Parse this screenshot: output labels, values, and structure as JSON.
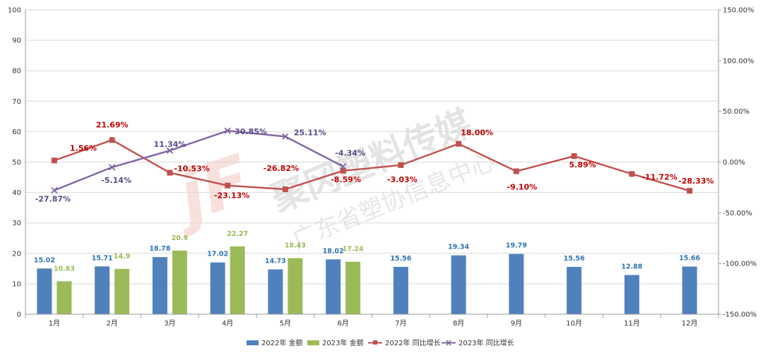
{
  "colors": {
    "bar2022": "#4f81bd",
    "bar2023": "#9bbb59",
    "line2022": "#c0504d",
    "line2023": "#8064a2",
    "label2022": "#2e74b5",
    "label2023": "#9bbb59",
    "pct2022": "#c00000",
    "pct2023": "#5b4a8a",
    "grid": "#d9d9d9"
  },
  "watermark": {
    "line1": "聚冈塑料传媒",
    "line2": "广东省塑协信息中心",
    "logo": "jF"
  },
  "chart_data": {
    "type": "bar",
    "categories": [
      "1月",
      "2月",
      "3月",
      "4月",
      "5月",
      "6月",
      "7月",
      "8月",
      "9月",
      "10月",
      "11月",
      "12月"
    ],
    "series": [
      {
        "name": "2022年 金额",
        "kind": "bar",
        "axis": "left",
        "values": [
          15.02,
          15.71,
          18.78,
          17.02,
          14.73,
          18.02,
          15.56,
          19.34,
          19.79,
          15.56,
          12.88,
          15.66
        ],
        "labels": [
          "15.02",
          "15.71",
          "18.78",
          "17.02",
          "14.73",
          "18.02",
          "15.56",
          "19.34",
          "19.79",
          "15.56",
          "12.88",
          "15.66"
        ]
      },
      {
        "name": "2023年 金额",
        "kind": "bar",
        "axis": "left",
        "values": [
          10.83,
          14.9,
          20.9,
          22.27,
          18.43,
          17.24,
          null,
          null,
          null,
          null,
          null,
          null
        ],
        "labels": [
          "10.83",
          "14.9",
          "20.9",
          "22.27",
          "18.43",
          "17.24",
          "",
          "",
          "",
          "",
          "",
          ""
        ]
      },
      {
        "name": "2022年 同比增长",
        "kind": "line",
        "axis": "right",
        "marker": "square",
        "values": [
          1.56,
          21.69,
          -10.53,
          -23.13,
          -26.82,
          -8.59,
          -3.03,
          18.0,
          -9.1,
          5.89,
          -11.72,
          -28.33
        ],
        "labels": [
          "1.56%",
          "21.69%",
          "-10.53%",
          "-23.13%",
          "-26.82%",
          "-8.59%",
          "-3.03%",
          "18.00%",
          "-9.10%",
          "5.89%",
          "-11.72%",
          "-28.33%"
        ]
      },
      {
        "name": "2023年 同比增长",
        "kind": "line",
        "axis": "right",
        "marker": "x",
        "values": [
          -27.87,
          -5.14,
          11.34,
          30.85,
          25.11,
          -4.34,
          null,
          null,
          null,
          null,
          null,
          null
        ],
        "labels": [
          "-27.87%",
          "-5.14%",
          "11.34%",
          "30.85%",
          "25.11%",
          "-4.34%",
          "",
          "",
          "",
          "",
          "",
          ""
        ]
      }
    ],
    "y_left": {
      "min": 0,
      "max": 100,
      "step": 10,
      "ticks": [
        "0",
        "10",
        "20",
        "30",
        "40",
        "50",
        "60",
        "70",
        "80",
        "90",
        "100"
      ]
    },
    "y_right": {
      "min": -150,
      "max": 150,
      "step": 50,
      "ticks": [
        "-150.00%",
        "-100.00%",
        "-50.00%",
        "0.00%",
        "50.00%",
        "100.00%",
        "150.00%"
      ]
    },
    "grid": true,
    "legend": "bottom"
  }
}
